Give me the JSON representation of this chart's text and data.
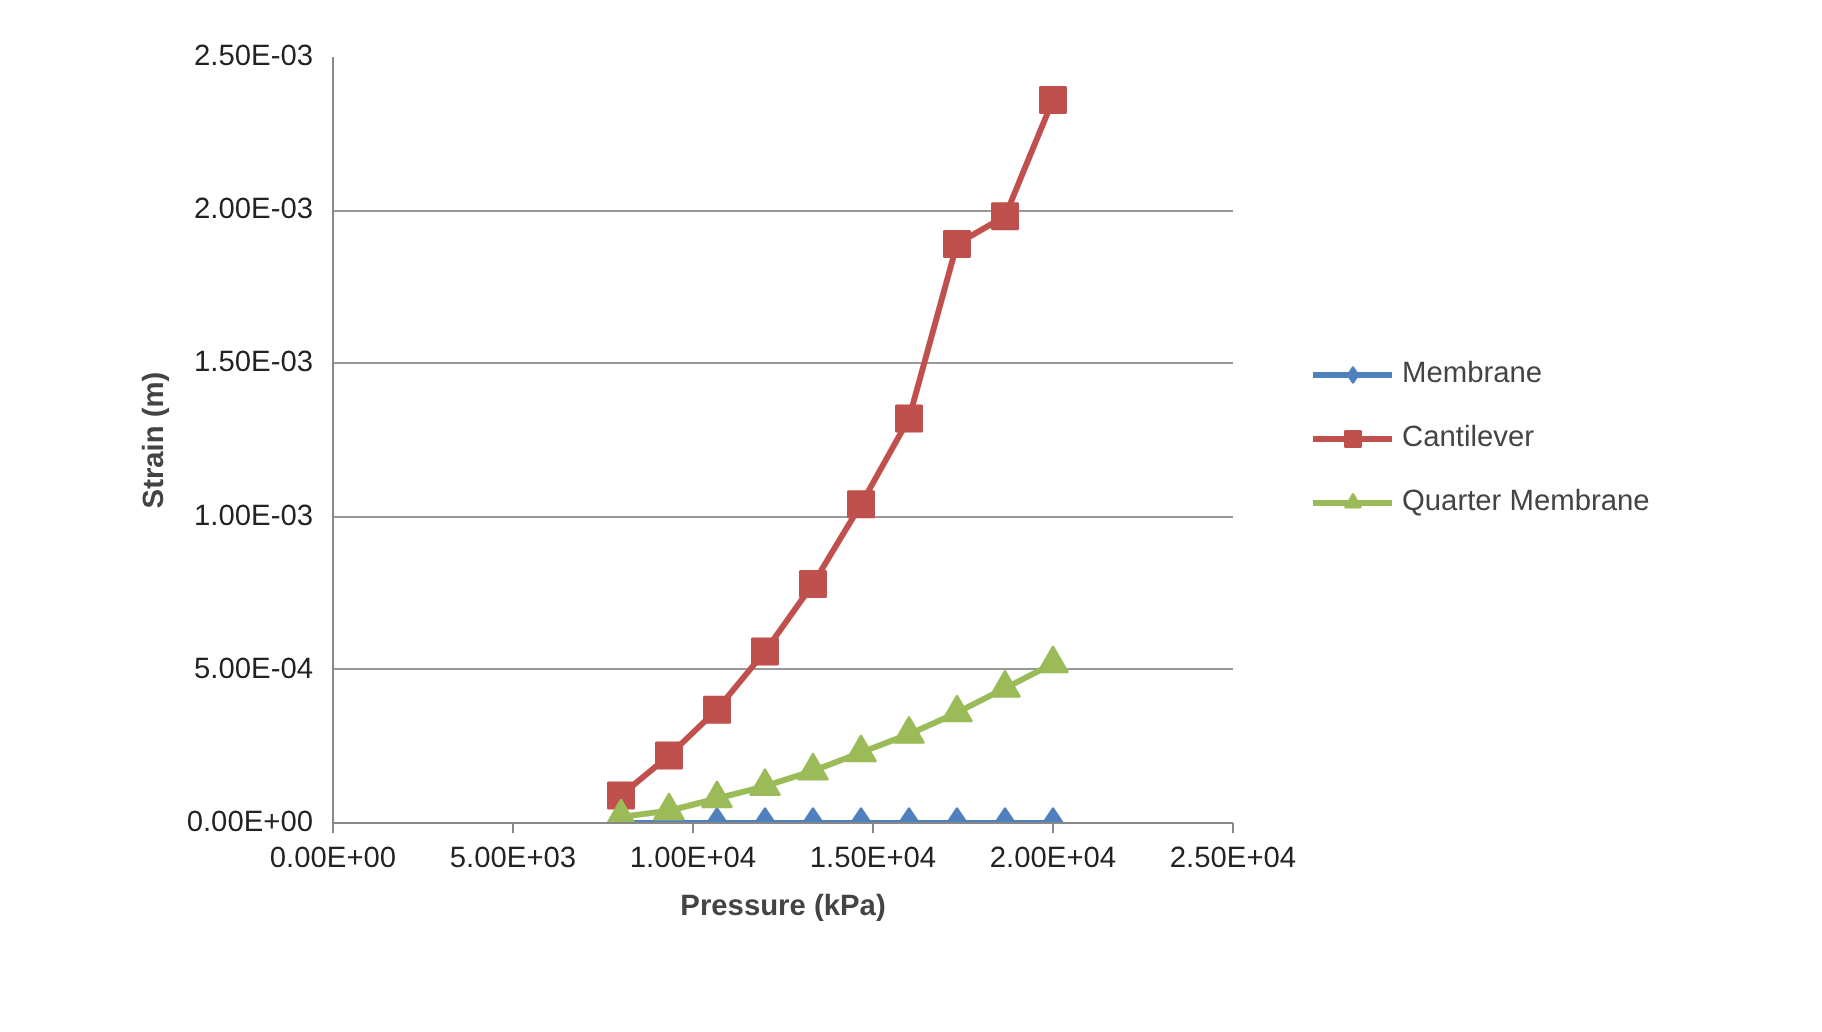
{
  "chart_data": {
    "type": "line",
    "xlabel": "Pressure (kPa)",
    "ylabel": "Strain (m)",
    "x": [
      8000,
      9333,
      10667,
      12000,
      13333,
      14667,
      16000,
      17333,
      18667,
      20000
    ],
    "series": [
      {
        "name": "Membrane",
        "color": "#4f81bd",
        "marker": "diamond",
        "values": [
          0,
          0,
          0,
          0,
          0,
          0,
          0,
          0,
          0,
          0
        ]
      },
      {
        "name": "Cantilever",
        "color": "#c0504d",
        "marker": "square",
        "values": [
          9e-05,
          0.00022,
          0.00037,
          0.00056,
          0.00078,
          0.00104,
          0.00132,
          0.00189,
          0.00198,
          0.00236
        ]
      },
      {
        "name": "Quarter Membrane",
        "color": "#9bbb59",
        "marker": "triangle",
        "values": [
          2e-05,
          4e-05,
          8e-05,
          0.00012,
          0.00017,
          0.00023,
          0.00029,
          0.00036,
          0.00044,
          0.00052
        ]
      }
    ],
    "xlim": [
      0,
      25000
    ],
    "ylim": [
      0,
      0.0025
    ],
    "xticks": [
      {
        "value": 0,
        "label": "0.00E+00"
      },
      {
        "value": 5000,
        "label": "5.00E+03"
      },
      {
        "value": 10000,
        "label": "1.00E+04"
      },
      {
        "value": 15000,
        "label": "1.50E+04"
      },
      {
        "value": 20000,
        "label": "2.00E+04"
      },
      {
        "value": 25000,
        "label": "2.50E+04"
      }
    ],
    "yticks": [
      {
        "value": 0,
        "label": "0.00E+00"
      },
      {
        "value": 0.0005,
        "label": "5.00E-04"
      },
      {
        "value": 0.001,
        "label": "1.00E-03"
      },
      {
        "value": 0.0015,
        "label": "1.50E-03"
      },
      {
        "value": 0.002,
        "label": "2.00E-03"
      },
      {
        "value": 0.0025,
        "label": "2.50E-03"
      }
    ],
    "grid": "y",
    "legend": "right",
    "line_style": "solid"
  }
}
